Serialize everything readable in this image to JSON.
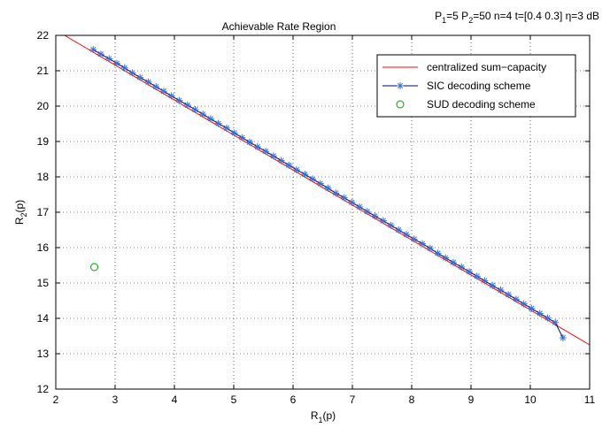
{
  "chart_data": {
    "type": "line",
    "title": "Achievable Rate Region",
    "params": {
      "p1": "P",
      "p1_sub": "1",
      "p1_val": "=5 ",
      "p2": "P",
      "p2_sub": "2",
      "p2_val": "=50 n=4 t=[0.4 0.3] η=3 dB"
    },
    "xlabel": {
      "main": "R",
      "sub": "1",
      "rest": "(p)"
    },
    "ylabel": {
      "main": "R",
      "sub": "2",
      "rest": "(p)"
    },
    "xlim": [
      2,
      11
    ],
    "ylim": [
      12,
      22
    ],
    "xticks": [
      2,
      3,
      4,
      5,
      6,
      7,
      8,
      9,
      10,
      11
    ],
    "yticks": [
      12,
      13,
      14,
      15,
      16,
      17,
      18,
      19,
      20,
      21,
      22
    ],
    "grid": true,
    "legend_position": "top-right",
    "series": [
      {
        "name": "centralized sum−capacity",
        "style": "line",
        "color": "#ff0000",
        "x": [
          2.15,
          11.0
        ],
        "y": [
          22.0,
          13.25
        ]
      },
      {
        "name": "SIC decoding scheme",
        "style": "line-star",
        "color": "#00007f",
        "marker_color": "#3b6fc8",
        "x": [
          2.63,
          2.76,
          2.9,
          3.03,
          3.16,
          3.29,
          3.42,
          3.56,
          3.69,
          3.82,
          3.95,
          4.08,
          4.22,
          4.35,
          4.48,
          4.61,
          4.74,
          4.88,
          5.01,
          5.14,
          5.27,
          5.4,
          5.54,
          5.67,
          5.8,
          5.93,
          6.06,
          6.2,
          6.33,
          6.46,
          6.59,
          6.72,
          6.86,
          6.99,
          7.12,
          7.25,
          7.38,
          7.52,
          7.65,
          7.78,
          7.91,
          8.04,
          8.18,
          8.31,
          8.44,
          8.57,
          8.7,
          8.84,
          8.97,
          9.1,
          9.23,
          9.36,
          9.5,
          9.63,
          9.76,
          9.89,
          10.02,
          10.16,
          10.29,
          10.42,
          10.55
        ],
        "y": [
          21.6,
          21.47,
          21.34,
          21.21,
          21.08,
          20.94,
          20.81,
          20.68,
          20.55,
          20.42,
          20.29,
          20.16,
          20.03,
          19.9,
          19.77,
          19.64,
          19.51,
          19.38,
          19.24,
          19.11,
          18.98,
          18.85,
          18.72,
          18.59,
          18.46,
          18.33,
          18.2,
          18.07,
          17.94,
          17.81,
          17.68,
          17.54,
          17.41,
          17.28,
          17.15,
          17.02,
          16.89,
          16.76,
          16.63,
          16.5,
          16.37,
          16.24,
          16.11,
          15.98,
          15.84,
          15.71,
          15.58,
          15.45,
          15.32,
          15.19,
          15.06,
          14.93,
          14.8,
          14.67,
          14.54,
          14.41,
          14.28,
          14.14,
          14.01,
          13.88,
          13.45
        ]
      },
      {
        "name": "SUD decoding scheme",
        "style": "marker-circle",
        "color": "#00a000",
        "x": [
          2.65
        ],
        "y": [
          15.45
        ]
      }
    ]
  }
}
